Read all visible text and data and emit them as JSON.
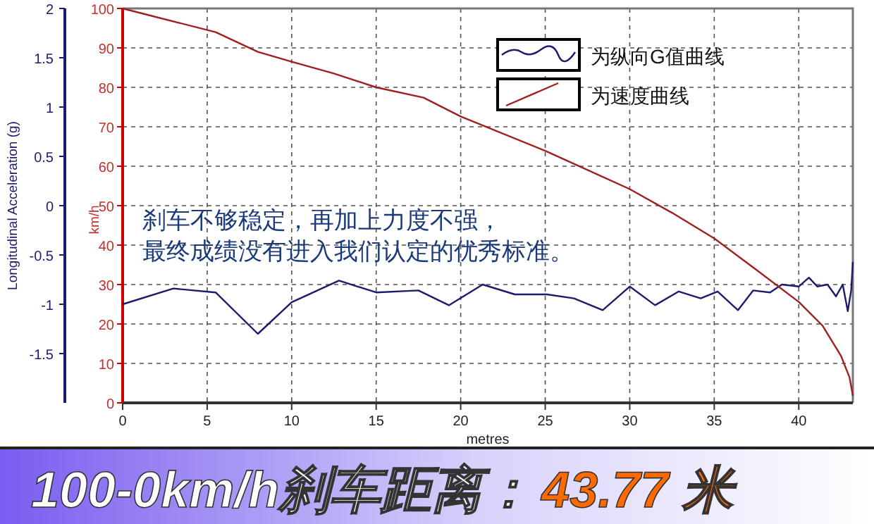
{
  "chart_data": {
    "type": "line",
    "title": "100-0km/h刹车距离：",
    "subtitle": "43.77 米",
    "xlabel": "metres",
    "ylabel": "km/h",
    "y2label": "Longitudinal Acceleration (g)",
    "annotations": [
      "刹车不够稳定，再加上力度不强，",
      "最终成绩没有进入我们认定的优秀标准。"
    ],
    "xlim": [
      0,
      43.2
    ],
    "xticks": [
      0,
      5,
      10,
      15,
      20,
      25,
      30,
      35,
      40
    ],
    "ylim": [
      0,
      100
    ],
    "yticks": [
      0,
      10,
      20,
      30,
      40,
      50,
      60,
      70,
      80,
      90,
      100
    ],
    "y2lim": [
      -2,
      2
    ],
    "y2ticks": [
      -1.5,
      -1,
      -0.5,
      0,
      0.5,
      1,
      1.5,
      2
    ],
    "grid": true,
    "legend": "top right",
    "series": [
      {
        "name": "为纵向G值曲线",
        "color": "#1c1c6e",
        "axis": "y2",
        "x": [
          0,
          3,
          5.5,
          8,
          10,
          12.8,
          15,
          17.5,
          19.3,
          21.3,
          23.2,
          25.1,
          26.7,
          28.4,
          30,
          31.5,
          32.9,
          34.2,
          35.2,
          36.4,
          37.3,
          38.3,
          39,
          40,
          40.6,
          41.1,
          41.7,
          42.2,
          42.6,
          42.9,
          43.1,
          43.2
        ],
        "values": [
          -1.0,
          -0.84,
          -0.88,
          -1.3,
          -0.98,
          -0.76,
          -0.88,
          -0.86,
          -1.01,
          -0.8,
          -0.9,
          -0.9,
          -0.94,
          -1.06,
          -0.82,
          -1.01,
          -0.87,
          -0.94,
          -0.87,
          -1.06,
          -0.86,
          -0.88,
          -0.8,
          -0.82,
          -0.73,
          -0.82,
          -0.8,
          -0.92,
          -0.8,
          -1.07,
          -0.86,
          -0.57
        ]
      },
      {
        "name": "为速度曲线",
        "color": "#a02020",
        "x": [
          0,
          5.5,
          8,
          10,
          12.5,
          15,
          17.8,
          20,
          25,
          30,
          32.5,
          35,
          37.5,
          40,
          41.4,
          42.5,
          43,
          43.2
        ],
        "values": [
          100,
          94,
          89,
          86.5,
          83.5,
          80,
          77.4,
          72.6,
          63.9,
          54.2,
          48.2,
          41.7,
          33.7,
          25.6,
          19.6,
          11.9,
          6.5,
          1.8
        ]
      }
    ]
  }
}
